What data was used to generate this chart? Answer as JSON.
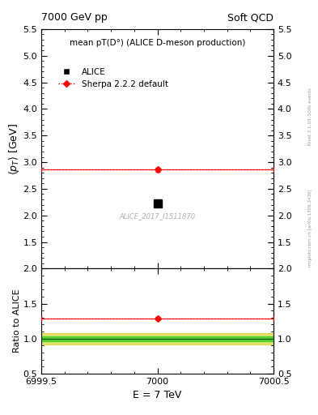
{
  "title_left": "7000 GeV pp",
  "title_right": "Soft QCD",
  "main_title": "mean pT(D°) (ALICE D-meson production)",
  "xlabel": "E = 7 TeV",
  "ylabel_main": "<p_T> [GeV]",
  "ylabel_ratio": "Ratio to ALICE",
  "right_label_bottom": "mcplots.cern.ch [arXiv:1306.3436]",
  "right_label_top": "Rivet 3.1.10, 500k events",
  "watermark": "ALICE_2017_I1511870",
  "xlim": [
    6999.5,
    7000.5
  ],
  "xticks": [
    6999.5,
    7000.0,
    7000.5
  ],
  "xtick_labels": [
    "6999.5",
    "7000",
    "7000.5"
  ],
  "ylim_main": [
    1.0,
    5.5
  ],
  "yticks_main": [
    1.5,
    2.0,
    2.5,
    3.0,
    3.5,
    4.0,
    4.5,
    5.0,
    5.5
  ],
  "ylim_ratio": [
    0.5,
    2.0
  ],
  "yticks_ratio": [
    0.5,
    1.0,
    1.5,
    2.0
  ],
  "alice_x": 7000.0,
  "alice_y": 2.22,
  "alice_color": "black",
  "alice_marker": "s",
  "alice_marker_size": 7,
  "sherpa_x": 7000.0,
  "sherpa_y": 2.86,
  "sherpa_xerr": 0.5,
  "sherpa_yerr": 0.04,
  "sherpa_color": "red",
  "sherpa_marker": "D",
  "sherpa_marker_size": 4,
  "yellow_band_half": 0.08,
  "green_band_half": 0.035,
  "sherpa_ratio_y": 1.29,
  "sherpa_ratio_yerr": 0.018,
  "legend_alice": "ALICE",
  "legend_sherpa": "Sherpa 2.2.2 default"
}
